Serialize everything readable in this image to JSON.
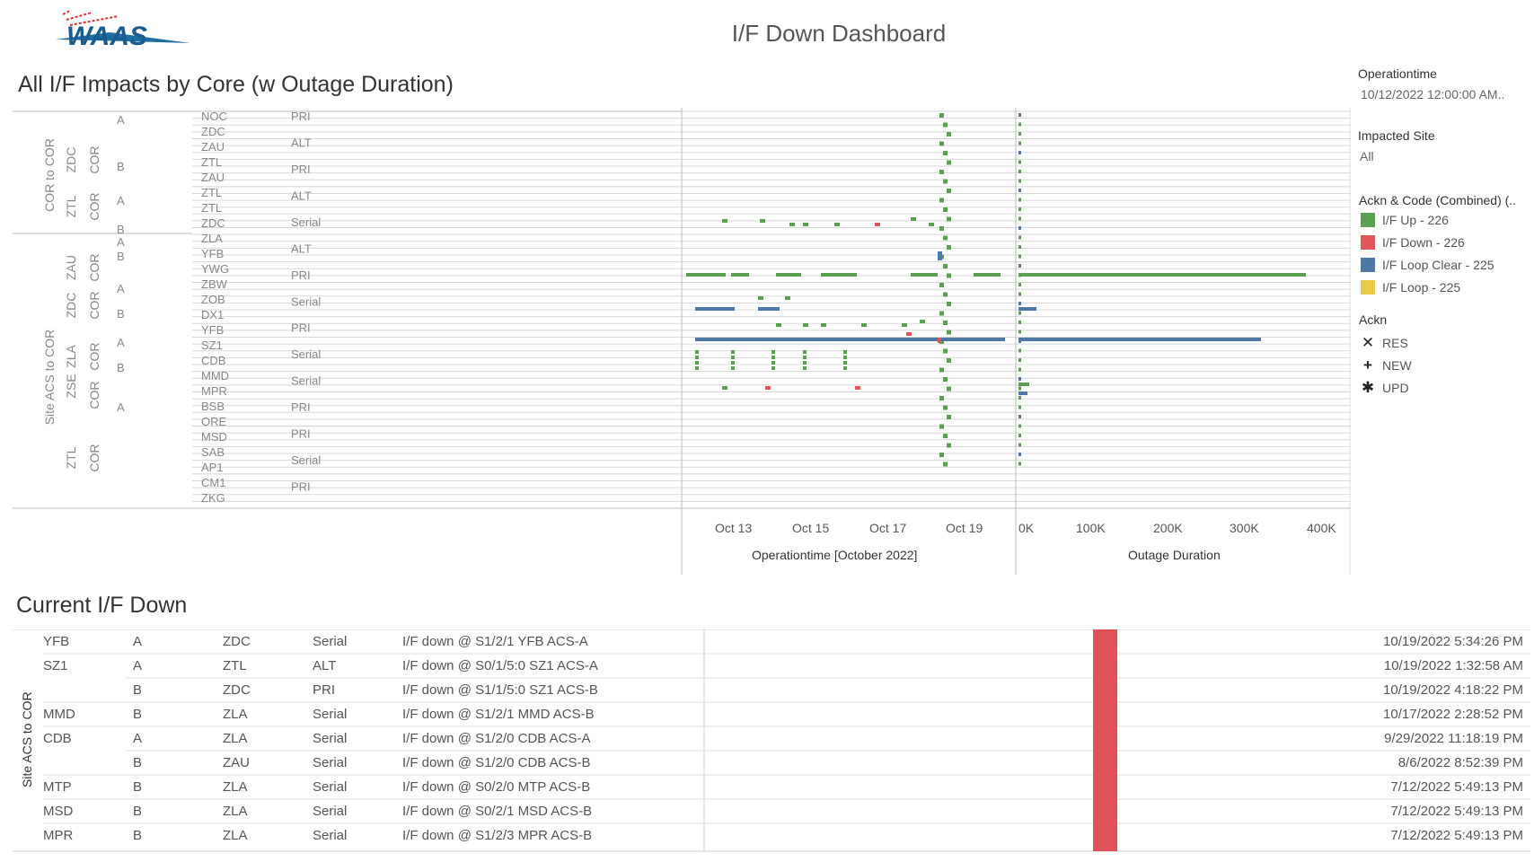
{
  "header": {
    "title": "I/F Down Dashboard",
    "logo_text": "WAAS"
  },
  "sections": {
    "impacts_title": "All I/F Impacts by Core (w Outage Duration)",
    "current_title": "Current I/F Down"
  },
  "filters": {
    "operationtime_label": "Operationtime",
    "operationtime_value": "10/12/2022 12:00:00 AM..",
    "impacted_site_label": "Impacted Site",
    "impacted_site_value": "All"
  },
  "legend": {
    "color_title": "Ackn & Code (Combined) (..",
    "color_items": [
      {
        "label": "I/F Up - 226",
        "color": "#59a14f"
      },
      {
        "label": "I/F Down - 226",
        "color": "#e15759"
      },
      {
        "label": "I/F Loop Clear - 225",
        "color": "#4e79a7"
      },
      {
        "label": "I/F Loop - 225",
        "color": "#edc948"
      }
    ],
    "shape_title": "Ackn",
    "shape_items": [
      {
        "label": "RES",
        "glyph": "✕"
      },
      {
        "label": "NEW",
        "glyph": "+"
      },
      {
        "label": "UPD",
        "glyph": "✱"
      }
    ]
  },
  "top_chart": {
    "group_labels": [
      "COR to COR",
      "Site ACS to COR"
    ],
    "core_labels": [
      "ZDC",
      "ZTL",
      "ZAU",
      "ZDC",
      "ZLA",
      "ZSE",
      "ZTL"
    ],
    "site_rows": [
      "NOC",
      "ZDC",
      "ZAU",
      "ZTL",
      "ZAU",
      "ZTL",
      "ZTL",
      "ZDC",
      "ZLA",
      "YFB",
      "YWG",
      "ZBW",
      "ZOB",
      "DX1",
      "YFB",
      "SZ1",
      "CDB",
      "MMD",
      "MPR",
      "BSB",
      "ORE",
      "MSD",
      "SAB",
      "AP1",
      "CM1",
      "ZKG"
    ],
    "type_rows": [
      "PRI",
      "ALT",
      "PRI",
      "ALT",
      "Serial",
      "ALT",
      "PRI",
      "Serial",
      "PRI",
      "Serial",
      "Serial",
      "PRI",
      "PRI",
      "Serial",
      "PRI"
    ],
    "x_axis_title": "Operationtime [October 2022]",
    "x_ticks": [
      "Oct 13",
      "Oct 15",
      "Oct 17",
      "Oct 19"
    ],
    "duration_axis_title": "Outage Duration",
    "duration_ticks": [
      "0K",
      "100K",
      "200K",
      "300K",
      "400K"
    ]
  },
  "current_table": {
    "side_label": "Site ACS to COR",
    "rows": [
      {
        "site": "YFB",
        "chan": "A",
        "core": "ZDC",
        "type": "Serial",
        "desc": "I/F down @ S1/2/1 YFB ACS-A",
        "time": "10/19/2022 5:34:26 PM"
      },
      {
        "site": "SZ1",
        "chan": "A",
        "core": "ZTL",
        "type": "ALT",
        "desc": "I/F down @ S0/1/5:0 SZ1 ACS-A",
        "time": "10/19/2022 1:32:58 AM"
      },
      {
        "site": "",
        "chan": "B",
        "core": "ZDC",
        "type": "PRI",
        "desc": "I/F down @ S1/1/5:0 SZ1 ACS-B",
        "time": "10/19/2022 4:18:22 PM"
      },
      {
        "site": "MMD",
        "chan": "B",
        "core": "ZLA",
        "type": "Serial",
        "desc": "I/F down @ S1/2/1 MMD ACS-B",
        "time": "10/17/2022 2:28:52 PM"
      },
      {
        "site": "CDB",
        "chan": "A",
        "core": "ZLA",
        "type": "Serial",
        "desc": "I/F down @ S1/2/0 CDB ACS-A",
        "time": "9/29/2022 11:18:19 PM"
      },
      {
        "site": "",
        "chan": "B",
        "core": "ZAU",
        "type": "Serial",
        "desc": "I/F down @ S1/2/0 CDB ACS-B",
        "time": "8/6/2022 8:52:39 PM"
      },
      {
        "site": "MTP",
        "chan": "B",
        "core": "ZLA",
        "type": "Serial",
        "desc": "I/F down @ S0/2/0 MTP ACS-B",
        "time": "7/12/2022 5:49:13 PM"
      },
      {
        "site": "MSD",
        "chan": "B",
        "core": "ZLA",
        "type": "Serial",
        "desc": "I/F down @ S0/2/1 MSD ACS-B",
        "time": "7/12/2022 5:49:13 PM"
      },
      {
        "site": "MPR",
        "chan": "B",
        "core": "ZLA",
        "type": "Serial",
        "desc": "I/F down @ S1/2/3 MPR ACS-B",
        "time": "7/12/2022 5:49:13 PM"
      }
    ]
  }
}
